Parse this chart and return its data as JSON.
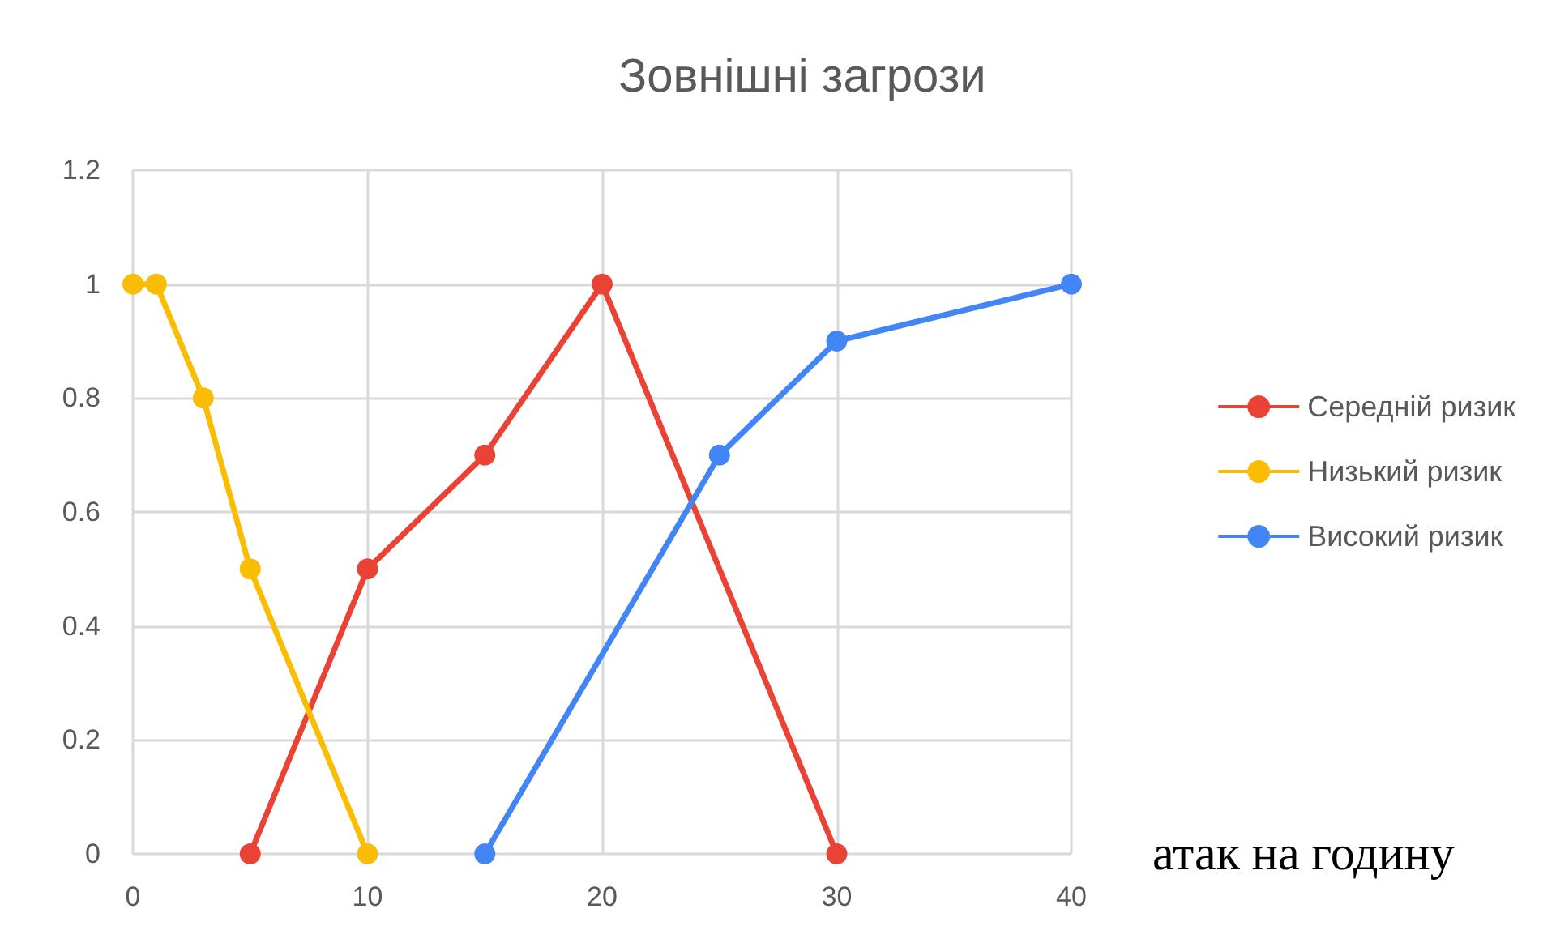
{
  "chart_data": {
    "type": "line",
    "title": "Зовнішні загрози",
    "xlabel": "атак на годину",
    "series": [
      {
        "name": "Середній ризик",
        "color": "#ea4335",
        "x": [
          5,
          10,
          15,
          20,
          30
        ],
        "values": [
          0,
          0.5,
          0.7,
          1,
          0
        ]
      },
      {
        "name": "Низький ризик",
        "color": "#fbbc04",
        "x": [
          0,
          1,
          3,
          5,
          10
        ],
        "values": [
          1,
          1,
          0.8,
          0.5,
          0
        ]
      },
      {
        "name": "Високий ризик",
        "color": "#4285f4",
        "x": [
          15,
          25,
          30,
          40
        ],
        "values": [
          0,
          0.7,
          0.9,
          1
        ]
      }
    ],
    "xlim": [
      0,
      40
    ],
    "xticks": [
      0,
      10,
      20,
      30,
      40
    ],
    "ylim": [
      0,
      1.2
    ],
    "yticks": [
      0,
      0.2,
      0.4,
      0.6,
      0.8,
      1,
      1.2
    ],
    "grid": true,
    "legend": "right",
    "marker": "circle",
    "line_style": "solid"
  }
}
